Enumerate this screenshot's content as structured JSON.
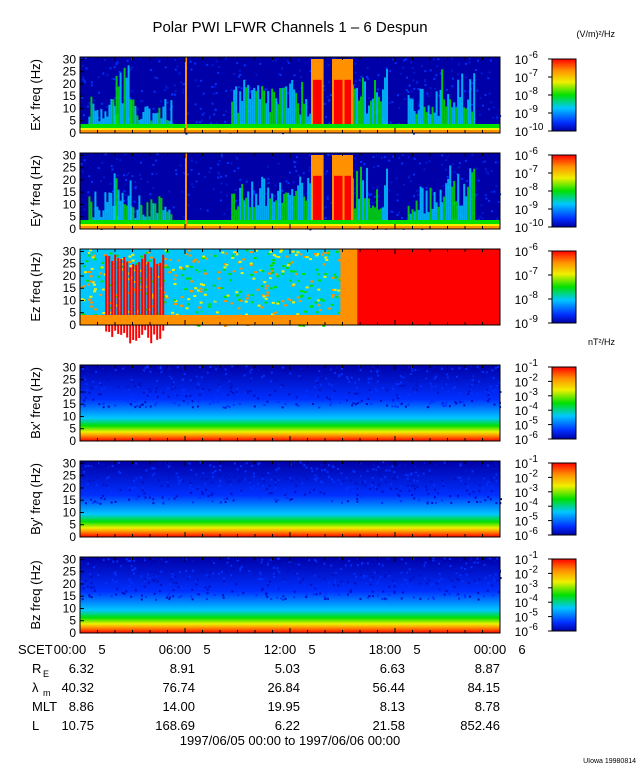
{
  "title": "Polar PWI LFWR Channels 1 – 6 Despun",
  "colors": {
    "blue_dark": "#0000a8",
    "blue": "#0030ff",
    "cyan": "#00c8ff",
    "green": "#00e000",
    "yellow": "#f0f000",
    "orange": "#ff9000",
    "red": "#ff0000",
    "axis": "#000000",
    "background": "#ffffff"
  },
  "chart_data": [
    {
      "type": "heatmap",
      "id": "ex",
      "ylabel": "Ex' freq (Hz)",
      "ylim": [
        0,
        31
      ],
      "yticks": [
        "0",
        "5",
        "10",
        "15",
        "20",
        "25",
        "30"
      ],
      "colorbar_units": "(V/m)²/Hz",
      "colorbar_ticks": [
        {
          "b": "10",
          "e": "-6"
        },
        {
          "b": "10",
          "e": "-7"
        },
        {
          "b": "10",
          "e": "-8"
        },
        {
          "b": "10",
          "e": "-9"
        },
        {
          "b": "10",
          "e": "-10"
        }
      ]
    },
    {
      "type": "heatmap",
      "id": "ey",
      "ylabel": "Ey' freq (Hz)",
      "ylim": [
        0,
        31
      ],
      "yticks": [
        "0",
        "5",
        "10",
        "15",
        "20",
        "25",
        "30"
      ],
      "colorbar_units": "",
      "colorbar_ticks": [
        {
          "b": "10",
          "e": "-6"
        },
        {
          "b": "10",
          "e": "-7"
        },
        {
          "b": "10",
          "e": "-8"
        },
        {
          "b": "10",
          "e": "-9"
        },
        {
          "b": "10",
          "e": "-10"
        }
      ]
    },
    {
      "type": "heatmap",
      "id": "ez",
      "ylabel": "Ez freq (Hz)",
      "ylim": [
        0,
        31
      ],
      "yticks": [
        "0",
        "5",
        "10",
        "15",
        "20",
        "25",
        "30"
      ],
      "colorbar_units": "",
      "colorbar_ticks": [
        {
          "b": "10",
          "e": "-6"
        },
        {
          "b": "10",
          "e": "-7"
        },
        {
          "b": "10",
          "e": "-8"
        },
        {
          "b": "10",
          "e": "-9"
        }
      ]
    },
    {
      "type": "heatmap",
      "id": "bx",
      "ylabel": "Bx' freq (Hz)",
      "ylim": [
        0,
        31
      ],
      "yticks": [
        "0",
        "5",
        "10",
        "15",
        "20",
        "25",
        "30"
      ],
      "colorbar_units": "nT²/Hz",
      "colorbar_ticks": [
        {
          "b": "10",
          "e": "-1"
        },
        {
          "b": "10",
          "e": "-2"
        },
        {
          "b": "10",
          "e": "-3"
        },
        {
          "b": "10",
          "e": "-4"
        },
        {
          "b": "10",
          "e": "-5"
        },
        {
          "b": "10",
          "e": "-6"
        }
      ]
    },
    {
      "type": "heatmap",
      "id": "by",
      "ylabel": "By' freq (Hz)",
      "ylim": [
        0,
        31
      ],
      "yticks": [
        "0",
        "5",
        "10",
        "15",
        "20",
        "25",
        "30"
      ],
      "colorbar_units": "",
      "colorbar_ticks": [
        {
          "b": "10",
          "e": "-1"
        },
        {
          "b": "10",
          "e": "-2"
        },
        {
          "b": "10",
          "e": "-3"
        },
        {
          "b": "10",
          "e": "-4"
        },
        {
          "b": "10",
          "e": "-5"
        },
        {
          "b": "10",
          "e": "-6"
        }
      ]
    },
    {
      "type": "heatmap",
      "id": "bz",
      "ylabel": "Bz freq (Hz)",
      "ylim": [
        0,
        31
      ],
      "yticks": [
        "0",
        "5",
        "10",
        "15",
        "20",
        "25",
        "30"
      ],
      "colorbar_units": "",
      "colorbar_ticks": [
        {
          "b": "10",
          "e": "-1"
        },
        {
          "b": "10",
          "e": "-2"
        },
        {
          "b": "10",
          "e": "-3"
        },
        {
          "b": "10",
          "e": "-4"
        },
        {
          "b": "10",
          "e": "-5"
        },
        {
          "b": "10",
          "e": "-6"
        }
      ]
    }
  ],
  "time_axis": {
    "label": "SCET",
    "ticks": [
      {
        "h": "00:00",
        "d": "5"
      },
      {
        "h": "06:00",
        "d": "5"
      },
      {
        "h": "12:00",
        "d": "5"
      },
      {
        "h": "18:00",
        "d": "5"
      },
      {
        "h": "00:00",
        "d": "6"
      }
    ]
  },
  "ephemeris": [
    {
      "label": "R",
      "sub": "E",
      "values": [
        "6.32",
        "8.91",
        "5.03",
        "6.63",
        "8.87"
      ]
    },
    {
      "label": "λ",
      "sub": "m",
      "values": [
        "40.32",
        "76.74",
        "26.84",
        "56.44",
        "84.15"
      ]
    },
    {
      "label": "MLT",
      "sub": "",
      "values": [
        "8.86",
        "14.00",
        "19.95",
        "8.13",
        "8.78"
      ]
    },
    {
      "label": "L",
      "sub": "",
      "values": [
        "10.75",
        "168.69",
        "6.22",
        "21.58",
        "852.46"
      ]
    }
  ],
  "date_range": "1997/06/05 00:00 to 1997/06/06 00:00",
  "credit": "UIowa 19980814"
}
